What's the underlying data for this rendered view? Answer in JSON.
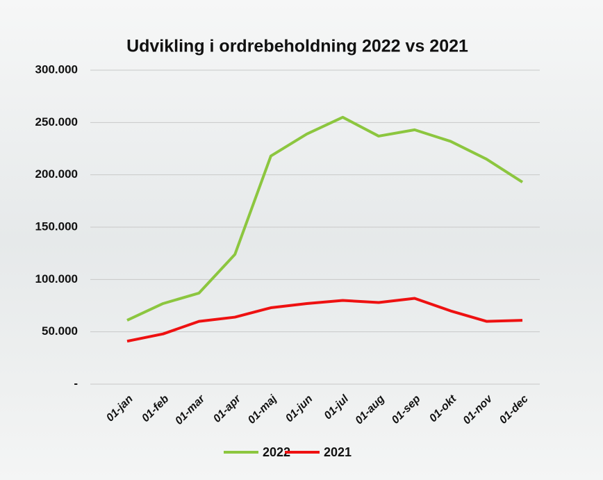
{
  "chart_data": {
    "type": "line",
    "title": "Udvikling i ordrebeholdning 2022 vs 2021",
    "categories": [
      "01-jan",
      "01-feb",
      "01-mar",
      "01-apr",
      "01-maj",
      "01-jun",
      "01-jul",
      "01-aug",
      "01-sep",
      "01-okt",
      "01-nov",
      "01-dec"
    ],
    "series": [
      {
        "name": "2022",
        "color": "#8cc63f",
        "values": [
          61000,
          77000,
          87000,
          124000,
          218000,
          239000,
          255000,
          237000,
          243000,
          232000,
          215000,
          193000
        ]
      },
      {
        "name": "2021",
        "color": "#ee1111",
        "values": [
          41000,
          48000,
          60000,
          64000,
          73000,
          77000,
          80000,
          78000,
          82000,
          70000,
          60000,
          61000
        ]
      }
    ],
    "ylim": [
      0,
      300000
    ],
    "yticks": [
      {
        "value": 0,
        "label": "-"
      },
      {
        "value": 50000,
        "label": "50.000"
      },
      {
        "value": 100000,
        "label": "100.000"
      },
      {
        "value": 150000,
        "label": "150.000"
      },
      {
        "value": 200000,
        "label": "200.000"
      },
      {
        "value": 250000,
        "label": "250.000"
      },
      {
        "value": 300000,
        "label": "300.000"
      }
    ],
    "grid": true,
    "legend": "bottom"
  }
}
